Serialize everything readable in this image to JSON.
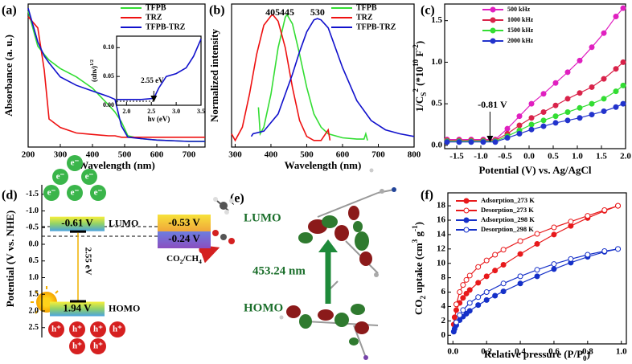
{
  "chart_data": [
    {
      "type": "line",
      "panel_label": "(a)",
      "x_label": "Wavelength (nm)",
      "y_label": "Absorbance (a. u.)",
      "xlim": [
        200,
        750
      ],
      "ylim": [
        0,
        1.02
      ],
      "xticks": [
        200,
        300,
        400,
        500,
        600,
        700
      ],
      "legend": "upper right",
      "x": [
        200,
        230,
        250,
        265,
        300,
        350,
        400,
        450,
        470,
        490,
        510,
        550,
        600,
        700,
        750
      ],
      "series": [
        {
          "name": "TFPB",
          "color": "#33dd33",
          "values": [
            0.97,
            0.72,
            0.66,
            0.62,
            0.56,
            0.5,
            0.42,
            0.3,
            0.25,
            0.18,
            0.08,
            0.06,
            0.05,
            0.04,
            0.04
          ]
        },
        {
          "name": "TRZ",
          "color": "#ee1111",
          "values": [
            0.93,
            0.85,
            0.55,
            0.2,
            0.14,
            0.1,
            0.09,
            0.08,
            0.08,
            0.07,
            0.07,
            0.07,
            0.07,
            0.07,
            0.07
          ]
        },
        {
          "name": "TFPB-TRZ",
          "color": "#1111cc",
          "values": [
            0.99,
            0.75,
            0.65,
            0.6,
            0.5,
            0.44,
            0.4,
            0.36,
            0.34,
            0.15,
            0.07,
            0.06,
            0.05,
            0.04,
            0.04
          ]
        }
      ],
      "inset": {
        "type": "line",
        "x_label": "hν (eV)",
        "y_label": [
          "(αhν)",
          "1/2"
        ],
        "xlim": [
          1.8,
          3.5
        ],
        "ylim": [
          0,
          0.12
        ],
        "xticks": [
          {
            "value": 2,
            "label": "2.0"
          },
          2.5,
          {
            "value": 3,
            "label": "3.0"
          },
          3.5
        ],
        "yticks": [
          {
            "value": 0,
            "label": "0.00"
          },
          {
            "value": 0.05,
            "label": "0.05"
          },
          {
            "value": 0.1,
            "label": "0.10"
          }
        ],
        "annotation": {
          "text": "2.55 eV",
          "x": 2.55
        },
        "x": [
          1.8,
          2.0,
          2.3,
          2.55,
          2.65,
          2.8,
          3.0,
          3.2,
          3.35,
          3.5
        ],
        "series": [
          {
            "color": "#1111cc",
            "values": [
              0.01,
              0.01,
              0.01,
              0.012,
              0.03,
              0.05,
              0.055,
              0.065,
              0.085,
              0.115
            ]
          }
        ]
      }
    },
    {
      "type": "line",
      "panel_label": "(b)",
      "x_label": "Wavelength (nm)",
      "y_label": "Normalized intensity",
      "xlim": [
        290,
        800
      ],
      "ylim": [
        0,
        1.08
      ],
      "xticks": [
        300,
        400,
        500,
        600,
        700,
        800
      ],
      "legend": "upper right",
      "peak_labels": [
        405,
        445,
        530
      ],
      "series": [
        {
          "name": "TFPB",
          "color": "#33dd33",
          "x": [
            365,
            370,
            380,
            400,
            420,
            440,
            445,
            460,
            480,
            500,
            520,
            540,
            560,
            600,
            640,
            660,
            665,
            670
          ],
          "values": [
            0.3,
            0.1,
            0.15,
            0.4,
            0.75,
            0.98,
            1.0,
            0.93,
            0.7,
            0.45,
            0.25,
            0.15,
            0.1,
            0.07,
            0.06,
            0.06,
            0.1,
            0.05
          ]
        },
        {
          "name": "TRZ",
          "color": "#ee1111",
          "x": [
            290,
            300,
            320,
            340,
            360,
            380,
            400,
            405,
            420,
            440,
            460,
            480,
            500,
            520,
            540,
            560,
            565
          ],
          "values": [
            0.1,
            0.05,
            0.15,
            0.4,
            0.7,
            0.92,
            0.99,
            1.0,
            0.95,
            0.75,
            0.45,
            0.2,
            0.08,
            0.05,
            0.05,
            0.13,
            0.05
          ]
        },
        {
          "name": "TFPB-TRZ",
          "color": "#1111cc",
          "x": [
            345,
            350,
            380,
            420,
            460,
            480,
            500,
            520,
            530,
            540,
            560,
            600,
            640,
            680,
            720,
            760,
            800
          ],
          "values": [
            0.08,
            0.1,
            0.12,
            0.25,
            0.55,
            0.72,
            0.87,
            0.96,
            0.97,
            0.96,
            0.9,
            0.6,
            0.35,
            0.2,
            0.13,
            0.1,
            0.08
          ]
        }
      ]
    },
    {
      "type": "line",
      "markers": true,
      "panel_label": "(c)",
      "x_label": "Potential (V) vs. Ag/AgCl",
      "y_label": [
        "1/C",
        "S",
        "2",
        " (*10",
        "10",
        " F",
        "-2",
        ")"
      ],
      "xlim": [
        -1.75,
        2.0
      ],
      "ylim": [
        -0.04,
        1.7
      ],
      "xticks": [
        -1.5,
        {
          "value": -1,
          "label": "-1.0"
        },
        -0.5,
        {
          "value": 0,
          "label": "0.0"
        },
        0.5,
        {
          "value": 1,
          "label": "1.0"
        },
        1.5,
        {
          "value": 2,
          "label": "2.0"
        }
      ],
      "yticks": [
        {
          "value": 0,
          "label": "0.0"
        },
        0.5,
        {
          "value": 1,
          "label": "1.0"
        },
        1.5
      ],
      "legend": "upper left",
      "annotation": {
        "text": "-0.81 V",
        "x": -0.81
      },
      "x": [
        -1.7,
        -1.45,
        -1.2,
        -0.95,
        -0.7,
        -0.45,
        -0.2,
        0.05,
        0.3,
        0.55,
        0.8,
        1.05,
        1.3,
        1.55,
        1.8,
        1.95
      ],
      "series": [
        {
          "name": "500 kHz",
          "color": "#e020c0",
          "values": [
            0.07,
            0.07,
            0.07,
            0.07,
            0.07,
            0.2,
            0.35,
            0.5,
            0.62,
            0.75,
            0.88,
            1.02,
            1.18,
            1.35,
            1.55,
            1.65
          ]
        },
        {
          "name": "1000 kHz",
          "color": "#d9234a",
          "values": [
            0.06,
            0.06,
            0.06,
            0.06,
            0.06,
            0.14,
            0.24,
            0.33,
            0.4,
            0.48,
            0.56,
            0.63,
            0.7,
            0.8,
            0.92,
            1.0
          ]
        },
        {
          "name": "1500 kHz",
          "color": "#33dd33",
          "values": [
            0.05,
            0.05,
            0.05,
            0.05,
            0.05,
            0.11,
            0.18,
            0.25,
            0.3,
            0.35,
            0.4,
            0.45,
            0.5,
            0.56,
            0.65,
            0.72
          ]
        },
        {
          "name": "2000 kHz",
          "color": "#2233cc",
          "values": [
            0.04,
            0.04,
            0.04,
            0.04,
            0.04,
            0.09,
            0.14,
            0.19,
            0.23,
            0.27,
            0.3,
            0.33,
            0.37,
            0.41,
            0.46,
            0.5
          ]
        }
      ]
    },
    {
      "type": "line",
      "markers": true,
      "panel_label": "(f)",
      "x_label": [
        "Relative pressure (P/P",
        "0",
        ")"
      ],
      "y_label": [
        "CO",
        "2",
        " uptake (cm",
        "3",
        " g",
        "-1",
        ")"
      ],
      "xlim": [
        -0.03,
        1.03
      ],
      "ylim": [
        -1.2,
        19.8
      ],
      "xticks": [
        {
          "value": 0,
          "label": "0.0"
        },
        0.2,
        0.4,
        0.6,
        0.8,
        {
          "value": 1,
          "label": "1.0"
        }
      ],
      "yticks": [
        0,
        2,
        4,
        6,
        8,
        10,
        12,
        14,
        16,
        18
      ],
      "legend": "upper left",
      "series": [
        {
          "name": "Adsorption_273 K",
          "color": "#e8191b",
          "marker_fill": true,
          "x": [
            0.005,
            0.01,
            0.02,
            0.04,
            0.06,
            0.08,
            0.1,
            0.15,
            0.2,
            0.25,
            0.3,
            0.4,
            0.5,
            0.6,
            0.7,
            0.8,
            0.9,
            0.98
          ],
          "values": [
            1.5,
            2.5,
            3.5,
            4.5,
            5.2,
            5.8,
            6.3,
            7.3,
            8.2,
            9.0,
            9.8,
            11.3,
            12.7,
            14.0,
            15.2,
            16.3,
            17.3,
            18.0
          ]
        },
        {
          "name": "Desorption_273 K",
          "color": "#e8191b",
          "marker_fill": false,
          "x": [
            0.98,
            0.9,
            0.8,
            0.7,
            0.6,
            0.5,
            0.4,
            0.3,
            0.25,
            0.2,
            0.15,
            0.1,
            0.08,
            0.06,
            0.04,
            0.02
          ],
          "values": [
            18.0,
            17.4,
            16.6,
            15.8,
            15.0,
            14.1,
            13.1,
            11.9,
            11.2,
            10.4,
            9.5,
            8.3,
            7.7,
            7.0,
            6.0,
            4.3
          ]
        },
        {
          "name": "Adsorption_298 K",
          "color": "#1530c8",
          "marker_fill": true,
          "x": [
            0.005,
            0.01,
            0.02,
            0.04,
            0.06,
            0.08,
            0.1,
            0.15,
            0.2,
            0.25,
            0.3,
            0.4,
            0.5,
            0.6,
            0.7,
            0.8,
            0.9,
            0.98
          ],
          "values": [
            0.5,
            0.9,
            1.4,
            2.1,
            2.6,
            3.0,
            3.4,
            4.2,
            4.9,
            5.5,
            6.1,
            7.2,
            8.2,
            9.2,
            10.1,
            10.9,
            11.6,
            12.0
          ]
        },
        {
          "name": "Desorption_298 K",
          "color": "#1530c8",
          "marker_fill": false,
          "x": [
            0.98,
            0.9,
            0.8,
            0.7,
            0.6,
            0.5,
            0.4,
            0.3,
            0.2,
            0.15,
            0.1,
            0.06,
            0.04,
            0.02
          ],
          "values": [
            12.0,
            11.7,
            11.2,
            10.6,
            9.9,
            9.1,
            8.2,
            7.2,
            6.0,
            5.3,
            4.5,
            3.5,
            2.8,
            1.8
          ]
        }
      ]
    }
  ],
  "diagrams": {
    "d": {
      "panel_label": "(d)",
      "y_label": "Potential (V vs. NHE)",
      "yticks": [
        -1.5,
        {
          "value": -1,
          "label": "-1.0"
        },
        -0.5,
        {
          "value": 0,
          "label": "0.0"
        },
        0.5,
        {
          "value": 1,
          "label": "1.0"
        },
        1.5,
        {
          "value": 2,
          "label": "2.0"
        },
        2.5
      ],
      "lumo": {
        "value": -0.61,
        "label": "-0.61 V",
        "name": "LUMO"
      },
      "homo": {
        "value": 1.94,
        "label": "1.94 V",
        "name": "HOMO"
      },
      "gap_label": "2.55 eV",
      "co2_level": {
        "value": -0.53,
        "label": "-0.53 V"
      },
      "ch4_level": {
        "value": -0.24,
        "label": "-0.24 V"
      },
      "reaction": [
        "CO",
        "2",
        "/CH",
        "4"
      ],
      "electrons": [
        "e⁻",
        "e⁻",
        "e⁻",
        "e⁻",
        "e⁻",
        "e⁻"
      ],
      "holes": [
        "h⁺",
        "h⁺",
        "h⁺",
        "h⁺",
        "h⁺",
        "h⁺"
      ]
    },
    "e": {
      "panel_label": "(e)",
      "lumo": "LUMO",
      "homo": "HOMO",
      "transition": "453.24 nm"
    }
  }
}
